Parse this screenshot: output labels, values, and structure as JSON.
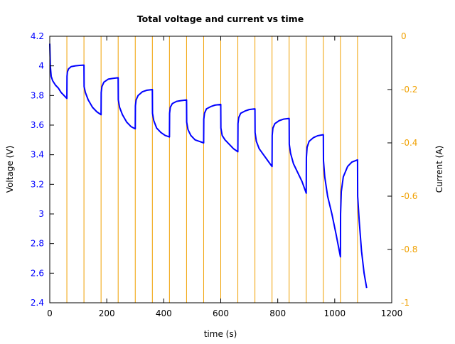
{
  "chart_data": {
    "type": "line",
    "title": "Total voltage and current vs time",
    "xlabel": "time (s)",
    "ylabel": "Voltage (V)",
    "y2label": "Current (A)",
    "xlim": [
      0,
      1200
    ],
    "ylim": [
      2.4,
      4.2
    ],
    "y2lim": [
      -1,
      0
    ],
    "grid": false,
    "x_ticks": [
      {
        "v": 0,
        "label": "0"
      },
      {
        "v": 200,
        "label": "200"
      },
      {
        "v": 400,
        "label": "400"
      },
      {
        "v": 600,
        "label": "600"
      },
      {
        "v": 800,
        "label": "800"
      },
      {
        "v": 1000,
        "label": "1000"
      },
      {
        "v": 1200,
        "label": "1200"
      }
    ],
    "y_ticks": [
      {
        "v": 2.4,
        "label": "2.4"
      },
      {
        "v": 2.6,
        "label": "2.6"
      },
      {
        "v": 2.8,
        "label": "2.8"
      },
      {
        "v": 3.0,
        "label": "3"
      },
      {
        "v": 3.2,
        "label": "3.2"
      },
      {
        "v": 3.4,
        "label": "3.4"
      },
      {
        "v": 3.6,
        "label": "3.6"
      },
      {
        "v": 3.8,
        "label": "3.8"
      },
      {
        "v": 4.0,
        "label": "4"
      },
      {
        "v": 4.2,
        "label": "4.2"
      }
    ],
    "y2_ticks": [
      {
        "v": 0,
        "label": "0"
      },
      {
        "v": -0.2,
        "label": "-0.2"
      },
      {
        "v": -0.4,
        "label": "-0.4"
      },
      {
        "v": -0.6,
        "label": "-0.6"
      },
      {
        "v": -0.8,
        "label": "-0.8"
      },
      {
        "v": -1,
        "label": "-1"
      }
    ],
    "colors": {
      "voltage": "#0000ff",
      "current": "#f0a000",
      "axis_left": "#0000ff",
      "axis_right": "#f0a000"
    },
    "series": [
      {
        "name": "Voltage",
        "axis": "left",
        "points": [
          [
            0,
            4.15
          ],
          [
            2,
            4.0
          ],
          [
            5,
            3.93
          ],
          [
            10,
            3.9
          ],
          [
            20,
            3.87
          ],
          [
            30,
            3.85
          ],
          [
            40,
            3.82
          ],
          [
            50,
            3.8
          ],
          [
            60,
            3.78
          ],
          [
            60.5,
            3.93
          ],
          [
            62,
            3.96
          ],
          [
            66,
            3.98
          ],
          [
            75,
            3.995
          ],
          [
            90,
            4.0
          ],
          [
            105,
            4.003
          ],
          [
            120,
            4.005
          ],
          [
            120.5,
            3.86
          ],
          [
            125,
            3.82
          ],
          [
            135,
            3.77
          ],
          [
            150,
            3.72
          ],
          [
            165,
            3.69
          ],
          [
            180,
            3.67
          ],
          [
            180.5,
            3.82
          ],
          [
            183,
            3.86
          ],
          [
            190,
            3.89
          ],
          [
            205,
            3.91
          ],
          [
            220,
            3.915
          ],
          [
            240,
            3.92
          ],
          [
            240.5,
            3.77
          ],
          [
            245,
            3.72
          ],
          [
            255,
            3.67
          ],
          [
            270,
            3.62
          ],
          [
            285,
            3.59
          ],
          [
            300,
            3.575
          ],
          [
            300.5,
            3.73
          ],
          [
            303,
            3.77
          ],
          [
            310,
            3.8
          ],
          [
            325,
            3.825
          ],
          [
            340,
            3.835
          ],
          [
            360,
            3.84
          ],
          [
            360.5,
            3.68
          ],
          [
            365,
            3.63
          ],
          [
            375,
            3.58
          ],
          [
            390,
            3.55
          ],
          [
            405,
            3.53
          ],
          [
            420,
            3.52
          ],
          [
            420.5,
            3.68
          ],
          [
            423,
            3.72
          ],
          [
            430,
            3.745
          ],
          [
            445,
            3.76
          ],
          [
            460,
            3.765
          ],
          [
            480,
            3.77
          ],
          [
            480.5,
            3.62
          ],
          [
            485,
            3.57
          ],
          [
            495,
            3.53
          ],
          [
            510,
            3.5
          ],
          [
            525,
            3.49
          ],
          [
            540,
            3.48
          ],
          [
            540.5,
            3.64
          ],
          [
            543,
            3.68
          ],
          [
            550,
            3.71
          ],
          [
            565,
            3.725
          ],
          [
            580,
            3.735
          ],
          [
            600,
            3.74
          ],
          [
            600.5,
            3.58
          ],
          [
            605,
            3.53
          ],
          [
            615,
            3.5
          ],
          [
            630,
            3.47
          ],
          [
            645,
            3.44
          ],
          [
            660,
            3.42
          ],
          [
            660.5,
            3.61
          ],
          [
            663,
            3.65
          ],
          [
            670,
            3.68
          ],
          [
            685,
            3.695
          ],
          [
            700,
            3.705
          ],
          [
            720,
            3.71
          ],
          [
            720.5,
            3.55
          ],
          [
            725,
            3.49
          ],
          [
            735,
            3.44
          ],
          [
            750,
            3.4
          ],
          [
            765,
            3.36
          ],
          [
            780,
            3.32
          ],
          [
            780.5,
            3.53
          ],
          [
            783,
            3.58
          ],
          [
            790,
            3.61
          ],
          [
            805,
            3.63
          ],
          [
            820,
            3.64
          ],
          [
            840,
            3.645
          ],
          [
            840.5,
            3.47
          ],
          [
            845,
            3.41
          ],
          [
            855,
            3.34
          ],
          [
            870,
            3.28
          ],
          [
            885,
            3.22
          ],
          [
            900,
            3.14
          ],
          [
            900.5,
            3.38
          ],
          [
            903,
            3.45
          ],
          [
            910,
            3.49
          ],
          [
            925,
            3.515
          ],
          [
            940,
            3.528
          ],
          [
            960,
            3.535
          ],
          [
            960.5,
            3.36
          ],
          [
            965,
            3.25
          ],
          [
            975,
            3.12
          ],
          [
            990,
            3.0
          ],
          [
            1005,
            2.86
          ],
          [
            1020,
            2.71
          ],
          [
            1020.5,
            3.0
          ],
          [
            1023,
            3.15
          ],
          [
            1030,
            3.25
          ],
          [
            1045,
            3.32
          ],
          [
            1060,
            3.35
          ],
          [
            1080,
            3.365
          ],
          [
            1080.5,
            3.12
          ],
          [
            1086,
            2.95
          ],
          [
            1094,
            2.75
          ],
          [
            1103,
            2.6
          ],
          [
            1112,
            2.5
          ]
        ]
      },
      {
        "name": "Current",
        "axis": "right",
        "points": [
          [
            0,
            -1
          ],
          [
            60,
            -1
          ],
          [
            60,
            0
          ],
          [
            120,
            0
          ],
          [
            120,
            -1
          ],
          [
            180,
            -1
          ],
          [
            180,
            0
          ],
          [
            240,
            0
          ],
          [
            240,
            -1
          ],
          [
            300,
            -1
          ],
          [
            300,
            0
          ],
          [
            360,
            0
          ],
          [
            360,
            -1
          ],
          [
            420,
            -1
          ],
          [
            420,
            0
          ],
          [
            480,
            0
          ],
          [
            480,
            -1
          ],
          [
            540,
            -1
          ],
          [
            540,
            0
          ],
          [
            600,
            0
          ],
          [
            600,
            -1
          ],
          [
            660,
            -1
          ],
          [
            660,
            0
          ],
          [
            720,
            0
          ],
          [
            720,
            -1
          ],
          [
            780,
            -1
          ],
          [
            780,
            0
          ],
          [
            840,
            0
          ],
          [
            840,
            -1
          ],
          [
            900,
            -1
          ],
          [
            900,
            0
          ],
          [
            960,
            0
          ],
          [
            960,
            -1
          ],
          [
            1020,
            -1
          ],
          [
            1020,
            0
          ],
          [
            1080,
            0
          ],
          [
            1080,
            -1
          ],
          [
            1112,
            -1
          ]
        ]
      }
    ]
  }
}
